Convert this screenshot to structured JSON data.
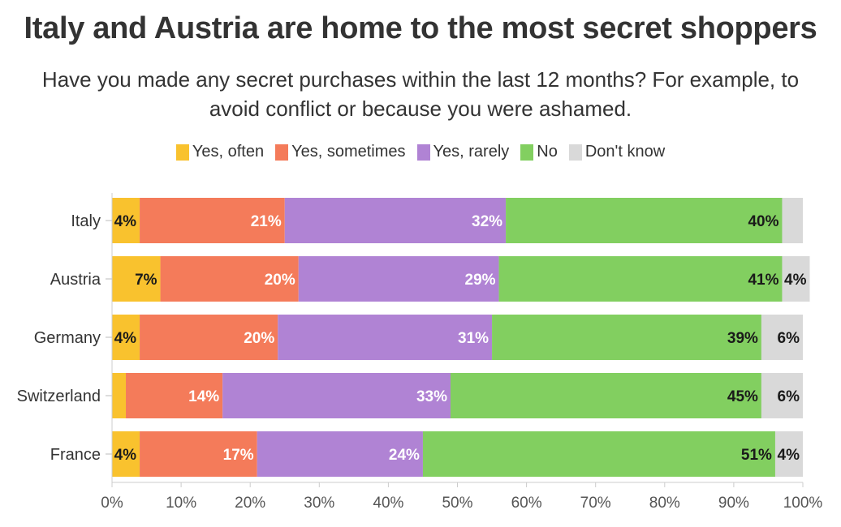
{
  "chart_data": {
    "type": "bar",
    "orientation": "horizontal",
    "stacked": true,
    "title": "Italy and Austria are home to the most secret shoppers",
    "subtitle": "Have you made any secret purchases within the last 12 months? For example, to avoid conflict or because you were ashamed.",
    "categories": [
      "Italy",
      "Austria",
      "Germany",
      "Switzerland",
      "France"
    ],
    "series": [
      {
        "name": "Yes, often",
        "color": "#F9C22E",
        "values": [
          4,
          7,
          4,
          2,
          4
        ],
        "labels": [
          "4%",
          "7%",
          "4%",
          "",
          "4%"
        ],
        "label_color": "#1a1a1a"
      },
      {
        "name": "Yes, sometimes",
        "color": "#F47B5A",
        "values": [
          21,
          20,
          20,
          14,
          17
        ],
        "labels": [
          "21%",
          "20%",
          "20%",
          "14%",
          "17%"
        ],
        "label_color": "#ffffff"
      },
      {
        "name": "Yes, rarely",
        "color": "#B083D4",
        "values": [
          32,
          29,
          31,
          33,
          24
        ],
        "labels": [
          "32%",
          "29%",
          "31%",
          "33%",
          "24%"
        ],
        "label_color": "#ffffff"
      },
      {
        "name": "No",
        "color": "#82CF60",
        "values": [
          40,
          41,
          39,
          45,
          51
        ],
        "labels": [
          "40%",
          "41%",
          "39%",
          "45%",
          "51%"
        ],
        "label_color": "#1a1a1a"
      },
      {
        "name": "Don't know",
        "color": "#D9D9D9",
        "values": [
          3,
          4,
          6,
          6,
          4
        ],
        "labels": [
          "",
          "4%",
          "6%",
          "6%",
          "4%"
        ],
        "label_color": "#1a1a1a"
      }
    ],
    "xlim": [
      0,
      100
    ],
    "xticks": [
      "0%",
      "10%",
      "20%",
      "30%",
      "40%",
      "50%",
      "60%",
      "70%",
      "80%",
      "90%",
      "100%"
    ],
    "legend_position": "top-center",
    "grid": false
  }
}
